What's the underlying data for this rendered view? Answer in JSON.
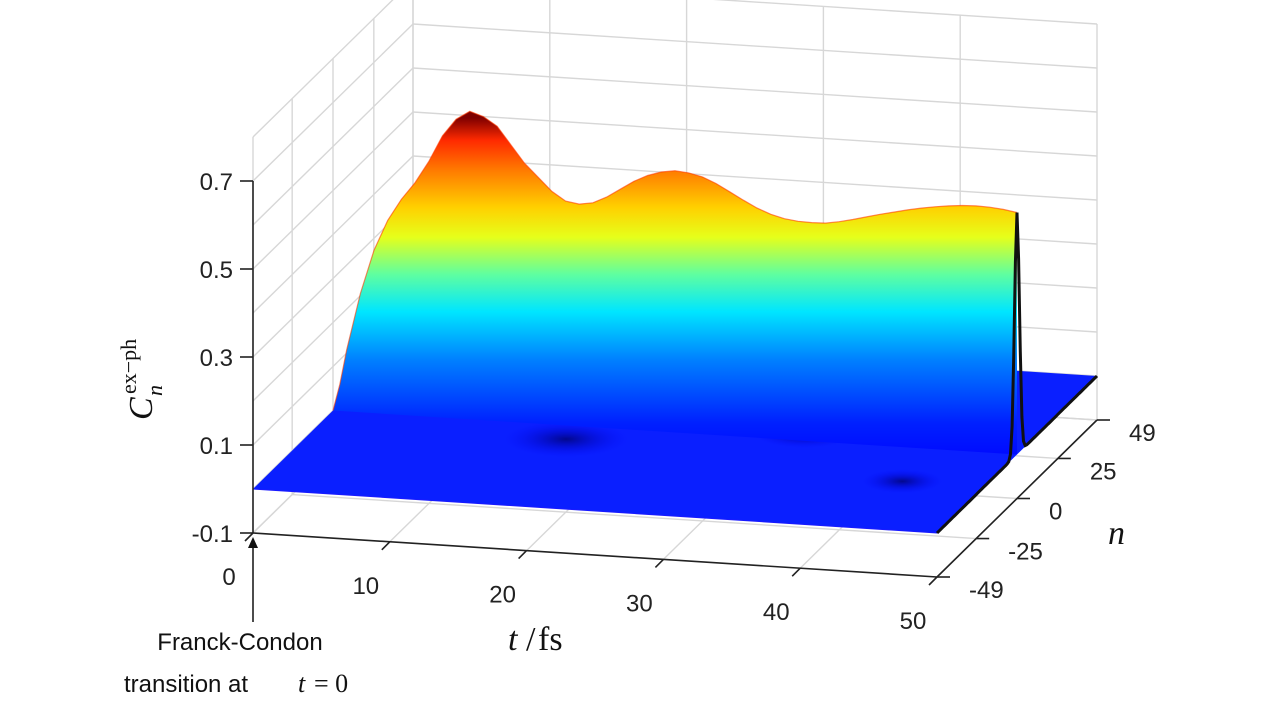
{
  "chart_data": {
    "type": "surface",
    "colormap": "jet",
    "title": "",
    "xlabel": {
      "var": "t",
      "slash": "/",
      "unit": "fs"
    },
    "ylabel": {
      "var": "n"
    },
    "zlabel": {
      "var": "C",
      "sub": "n",
      "sup": "ex−ph"
    },
    "xlim": [
      0,
      50
    ],
    "ylim": [
      -49,
      49
    ],
    "zlim": [
      -0.1,
      0.7
    ],
    "x_ticks": [
      "0",
      "10",
      "20",
      "30",
      "40",
      "50"
    ],
    "y_ticks": [
      "-49",
      "-25",
      "0",
      "25",
      "49"
    ],
    "z_ticks": [
      "-0.1",
      "0.1",
      "0.3",
      "0.5",
      "0.7"
    ],
    "grid": true,
    "ridge": {
      "n": 0,
      "t": [
        0,
        0.5,
        1,
        2,
        3,
        4,
        5,
        6,
        7,
        8,
        9,
        10,
        11,
        12,
        13,
        14,
        15,
        16,
        17,
        18,
        19,
        20,
        21,
        22,
        23,
        24,
        25,
        26,
        27,
        28,
        29,
        30,
        31,
        32,
        33,
        34,
        35,
        36,
        37,
        38,
        39,
        40,
        41,
        42,
        43,
        44,
        45,
        46,
        47,
        48,
        49,
        50
      ],
      "C": [
        0.0,
        0.06,
        0.14,
        0.27,
        0.37,
        0.44,
        0.49,
        0.53,
        0.58,
        0.64,
        0.68,
        0.7,
        0.69,
        0.67,
        0.63,
        0.59,
        0.56,
        0.53,
        0.51,
        0.505,
        0.51,
        0.525,
        0.545,
        0.565,
        0.58,
        0.59,
        0.595,
        0.592,
        0.585,
        0.572,
        0.555,
        0.538,
        0.522,
        0.51,
        0.502,
        0.498,
        0.497,
        0.498,
        0.503,
        0.51,
        0.518,
        0.526,
        0.533,
        0.54,
        0.546,
        0.551,
        0.555,
        0.558,
        0.559,
        0.558,
        0.555,
        0.55
      ]
    },
    "annotation": {
      "line1": "Franck-Condon",
      "line2": "transition at",
      "var": "t",
      "eq": "= 0"
    }
  }
}
